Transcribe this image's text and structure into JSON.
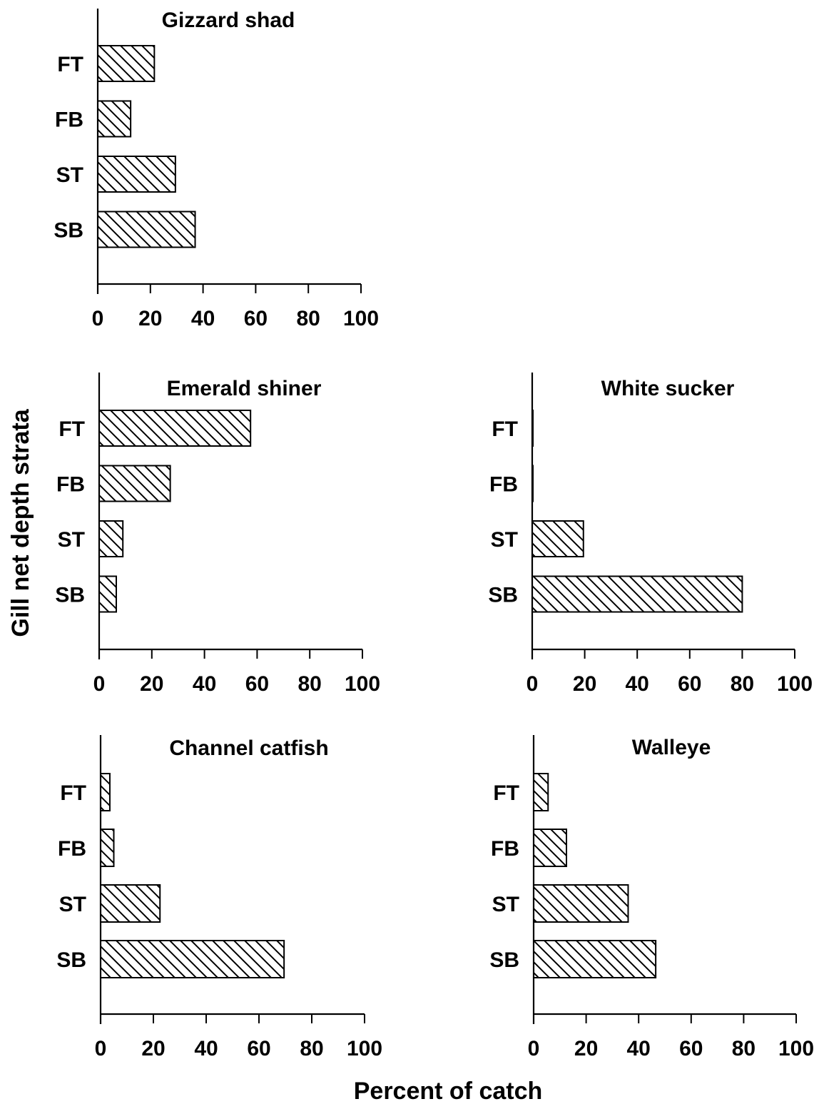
{
  "figure": {
    "ylabel": "Gill net depth strata",
    "xlabel": "Percent of catch"
  },
  "chart_data": [
    {
      "type": "bar",
      "orientation": "horizontal",
      "title": "Gizzard shad",
      "categories": [
        "FT",
        "FB",
        "ST",
        "SB"
      ],
      "values": [
        21.5,
        12.5,
        29.5,
        37
      ],
      "xlim": [
        0,
        100
      ],
      "xticks": [
        0,
        20,
        40,
        60,
        80,
        100
      ],
      "pattern": "diagonal-hatch"
    },
    {
      "type": "bar",
      "orientation": "horizontal",
      "title": "Emerald shiner",
      "categories": [
        "FT",
        "FB",
        "ST",
        "SB"
      ],
      "values": [
        57.5,
        27,
        9,
        6.5
      ],
      "xlim": [
        0,
        100
      ],
      "xticks": [
        0,
        20,
        40,
        60,
        80,
        100
      ],
      "pattern": "diagonal-hatch"
    },
    {
      "type": "bar",
      "orientation": "horizontal",
      "title": "White sucker",
      "categories": [
        "FT",
        "FB",
        "ST",
        "SB"
      ],
      "values": [
        0,
        0,
        19.5,
        80
      ],
      "xlim": [
        0,
        100
      ],
      "xticks": [
        0,
        20,
        40,
        60,
        80,
        100
      ],
      "pattern": "diagonal-hatch"
    },
    {
      "type": "bar",
      "orientation": "horizontal",
      "title": "Channel catfish",
      "categories": [
        "FT",
        "FB",
        "ST",
        "SB"
      ],
      "values": [
        3.5,
        5,
        22.5,
        69.5
      ],
      "xlim": [
        0,
        100
      ],
      "xticks": [
        0,
        20,
        40,
        60,
        80,
        100
      ],
      "pattern": "diagonal-hatch"
    },
    {
      "type": "bar",
      "orientation": "horizontal",
      "title": "Walleye",
      "categories": [
        "FT",
        "FB",
        "ST",
        "SB"
      ],
      "values": [
        5.5,
        12.5,
        36,
        46.5
      ],
      "xlim": [
        0,
        100
      ],
      "xticks": [
        0,
        20,
        40,
        60,
        80,
        100
      ],
      "pattern": "diagonal-hatch"
    }
  ]
}
